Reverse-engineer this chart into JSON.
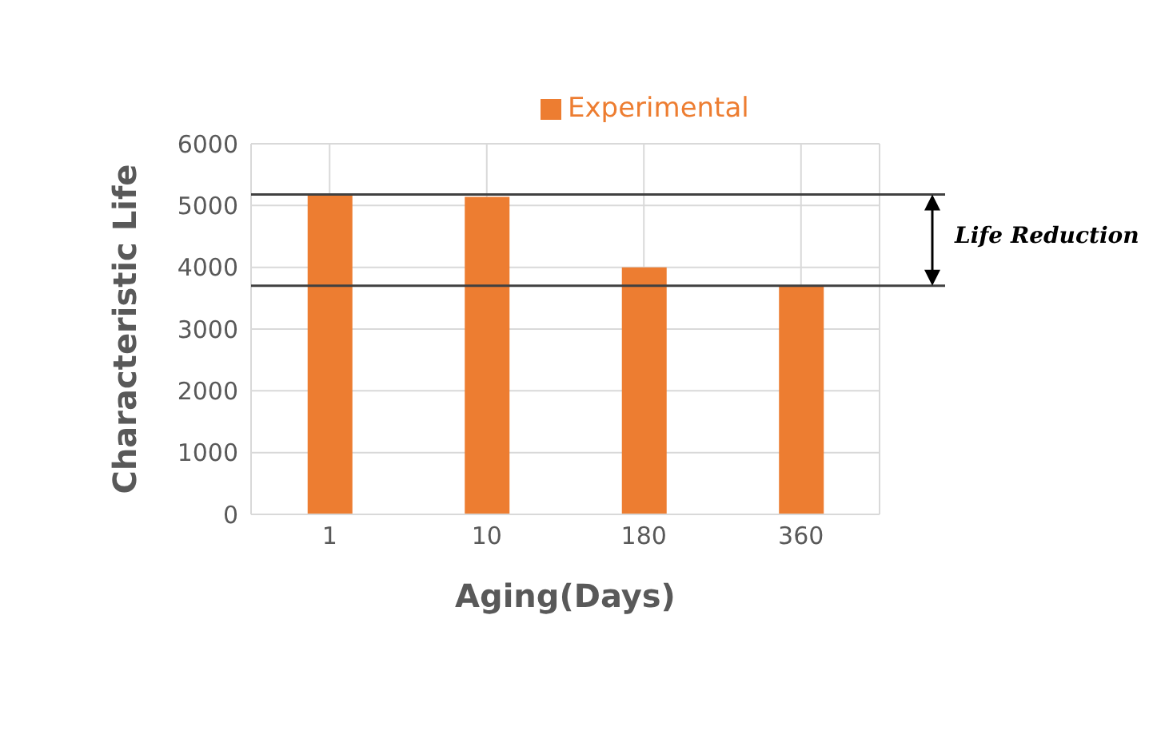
{
  "chart_data": {
    "type": "bar",
    "xlabel": "Aging(Days)",
    "ylabel": "Characteristic Life",
    "categories": [
      "1",
      "10",
      "180",
      "360"
    ],
    "series": [
      {
        "name": "Experimental",
        "color": "#ed7d31",
        "values": [
          5180,
          5140,
          4000,
          3700
        ]
      }
    ],
    "ylim": [
      0,
      6000
    ],
    "yticks": [
      0,
      1000,
      2000,
      3000,
      4000,
      5000,
      6000
    ],
    "grid": true,
    "legend": "top right",
    "ref_lines": [
      {
        "axis": "y",
        "value": 5180,
        "color": "#404040"
      },
      {
        "axis": "y",
        "value": 3700,
        "color": "#404040"
      }
    ],
    "annotations": [
      "Life Reduction"
    ]
  }
}
